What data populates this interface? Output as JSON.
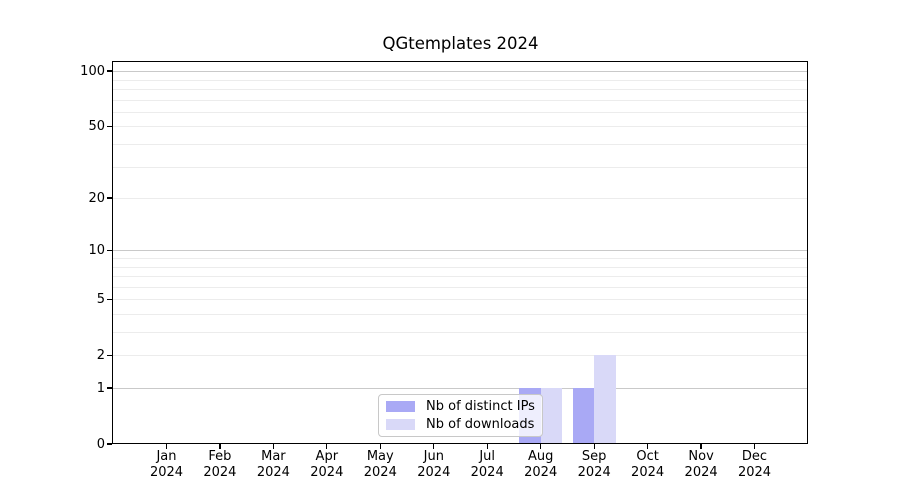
{
  "title": "QGtemplates 2024",
  "chart_data": {
    "type": "bar",
    "title": "QGtemplates 2024",
    "categories": [
      "Jan",
      "Feb",
      "Mar",
      "Apr",
      "May",
      "Jun",
      "Jul",
      "Aug",
      "Sep",
      "Oct",
      "Nov",
      "Dec"
    ],
    "year_label": "2024",
    "series": [
      {
        "name": "Nb of distinct IPs",
        "color": "#a9a9f5",
        "values": [
          0,
          0,
          0,
          0,
          0,
          0,
          0,
          1,
          1,
          0,
          0,
          0
        ]
      },
      {
        "name": "Nb of downloads",
        "color": "#d9d9f8",
        "values": [
          0,
          0,
          0,
          0,
          0,
          0,
          0,
          1,
          2,
          0,
          0,
          0
        ]
      }
    ],
    "yscale": "log1p",
    "ylim": [
      0,
      112
    ],
    "yticks": [
      0,
      1,
      2,
      5,
      10,
      20,
      50,
      100
    ],
    "major_gridlines": [
      1,
      10,
      100
    ],
    "minor_gridlines": [
      2,
      3,
      4,
      5,
      6,
      7,
      8,
      9,
      20,
      30,
      40,
      50,
      60,
      70,
      80,
      90
    ],
    "grid": true,
    "legend_position": "bottom-center"
  },
  "colors": {
    "background": "#ffffff",
    "spine": "#000000",
    "major_grid": "#c9c9c9",
    "minor_grid": "#ececec",
    "legend_border": "#c8c8c8",
    "text": "#000000"
  }
}
